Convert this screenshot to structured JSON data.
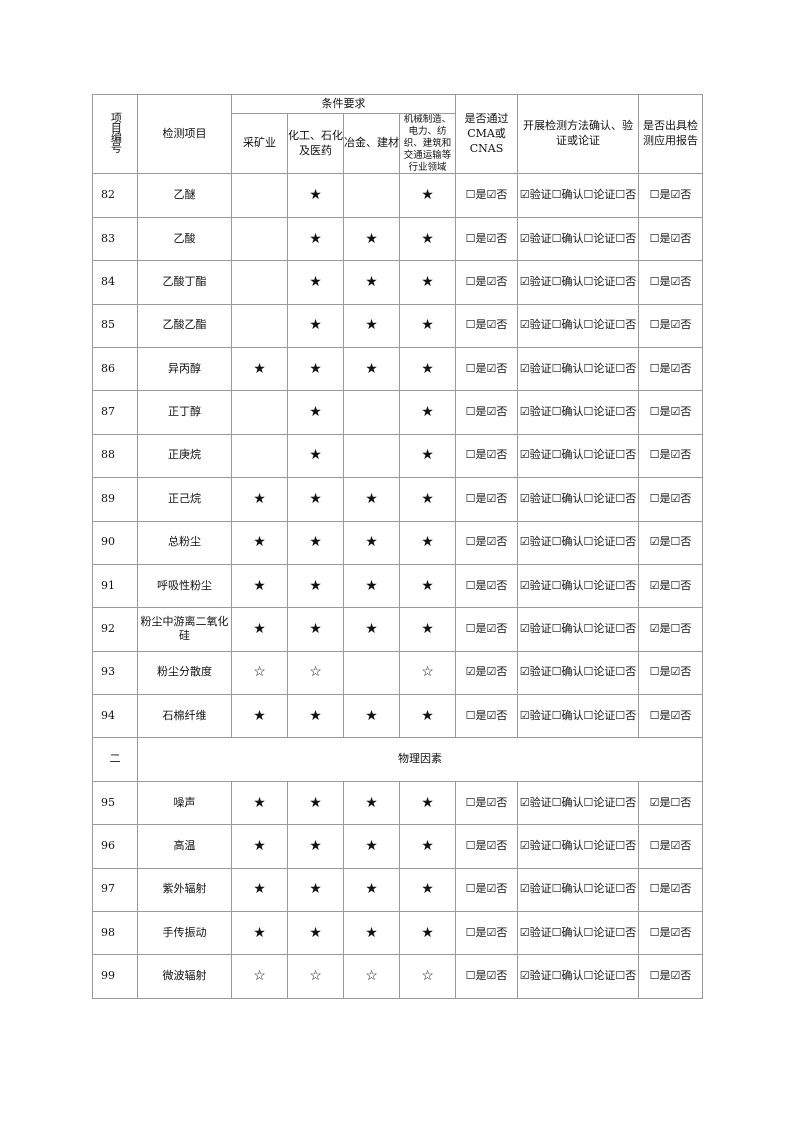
{
  "header": {
    "col_id": "项目编号",
    "col_item": "检测项目",
    "group": "条件要求",
    "sub": [
      "采矿业",
      "化工、石化及医药",
      "冶金、建材",
      "机械制造、电力、纺织、建筑和交通运输等行业领域"
    ],
    "col_cma": "是否通过CMA或CNAS",
    "col_method": "开展检测方法确认、验证或论证",
    "col_report": "是否出具检测应用报告"
  },
  "rows": [
    {
      "id": "82",
      "name": "乙醚",
      "c": [
        "",
        "★",
        "",
        "★"
      ],
      "cma": "☐是☑否",
      "method": "☑验证☐确认☐论证☐否",
      "report": "☐是☑否"
    },
    {
      "id": "83",
      "name": "乙酸",
      "c": [
        "",
        "★",
        "★",
        "★"
      ],
      "cma": "☐是☑否",
      "method": "☑验证☐确认☐论证☐否",
      "report": "☐是☑否"
    },
    {
      "id": "84",
      "name": "乙酸丁酯",
      "c": [
        "",
        "★",
        "★",
        "★"
      ],
      "cma": "☐是☑否",
      "method": "☑验证☐确认☐论证☐否",
      "report": "☐是☑否"
    },
    {
      "id": "85",
      "name": "乙酸乙酯",
      "c": [
        "",
        "★",
        "★",
        "★"
      ],
      "cma": "☐是☑否",
      "method": "☑验证☐确认☐论证☐否",
      "report": "☐是☑否"
    },
    {
      "id": "86",
      "name": "异丙醇",
      "c": [
        "★",
        "★",
        "★",
        "★"
      ],
      "cma": "☐是☑否",
      "method": "☑验证☐确认☐论证☐否",
      "report": "☐是☑否"
    },
    {
      "id": "87",
      "name": "正丁醇",
      "c": [
        "",
        "★",
        "",
        "★"
      ],
      "cma": "☐是☑否",
      "method": "☑验证☐确认☐论证☐否",
      "report": "☐是☑否"
    },
    {
      "id": "88",
      "name": "正庚烷",
      "c": [
        "",
        "★",
        "",
        "★"
      ],
      "cma": "☐是☑否",
      "method": "☑验证☐确认☐论证☐否",
      "report": "☐是☑否"
    },
    {
      "id": "89",
      "name": "正己烷",
      "c": [
        "★",
        "★",
        "★",
        "★"
      ],
      "cma": "☐是☑否",
      "method": "☑验证☐确认☐论证☐否",
      "report": "☐是☑否"
    },
    {
      "id": "90",
      "name": "总粉尘",
      "c": [
        "★",
        "★",
        "★",
        "★"
      ],
      "cma": "☐是☑否",
      "method": "☑验证☐确认☐论证☐否",
      "report": "☑是☐否"
    },
    {
      "id": "91",
      "name": "呼吸性粉尘",
      "c": [
        "★",
        "★",
        "★",
        "★"
      ],
      "cma": "☐是☑否",
      "method": "☑验证☐确认☐论证☐否",
      "report": "☑是☐否"
    },
    {
      "id": "92",
      "name": "粉尘中游离二氧化硅",
      "c": [
        "★",
        "★",
        "★",
        "★"
      ],
      "cma": "☐是☑否",
      "method": "☑验证☐确认☐论证☐否",
      "report": "☑是☐否"
    },
    {
      "id": "93",
      "name": "粉尘分散度",
      "c": [
        "☆",
        "☆",
        "",
        "☆"
      ],
      "cma": "☑是☑否",
      "method": "☑验证☐确认☐论证☐否",
      "report": "☐是☑否"
    },
    {
      "id": "94",
      "name": "石棉纤维",
      "c": [
        "★",
        "★",
        "★",
        "★"
      ],
      "cma": "☐是☑否",
      "method": "☑验证☐确认☐论证☐否",
      "report": "☐是☑否"
    },
    {
      "section": "二",
      "title": "物理因素"
    },
    {
      "id": "95",
      "name": "噪声",
      "c": [
        "★",
        "★",
        "★",
        "★"
      ],
      "cma": "☐是☑否",
      "method": "☑验证☐确认☐论证☐否",
      "report": "☑是☐否"
    },
    {
      "id": "96",
      "name": "高温",
      "c": [
        "★",
        "★",
        "★",
        "★"
      ],
      "cma": "☐是☑否",
      "method": "☑验证☐确认☐论证☐否",
      "report": "☐是☑否"
    },
    {
      "id": "97",
      "name": "紫外辐射",
      "c": [
        "★",
        "★",
        "★",
        "★"
      ],
      "cma": "☐是☑否",
      "method": "☑验证☐确认☐论证☐否",
      "report": "☐是☑否"
    },
    {
      "id": "98",
      "name": "手传振动",
      "c": [
        "★",
        "★",
        "★",
        "★"
      ],
      "cma": "☐是☑否",
      "method": "☑验证☐确认☐论证☐否",
      "report": "☐是☑否"
    },
    {
      "id": "99",
      "name": "微波辐射",
      "c": [
        "☆",
        "☆",
        "☆",
        "☆"
      ],
      "cma": "☐是☑否",
      "method": "☑验证☐确认☐论证☐否",
      "report": "☐是☑否"
    }
  ]
}
